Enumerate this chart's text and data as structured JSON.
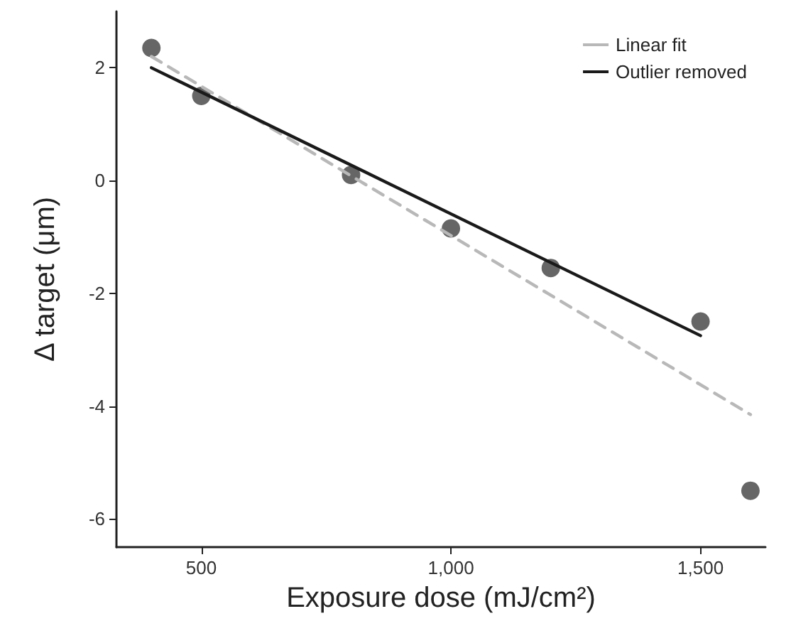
{
  "chart_data": {
    "type": "scatter",
    "xlabel": "Exposure dose (mJ/cm²)",
    "ylabel": "Δ target (μm)",
    "xlim": [
      330,
      1630
    ],
    "xticks": [
      {
        "value": 500,
        "label": "500"
      },
      {
        "value": 1000,
        "label": "1,000"
      },
      {
        "value": 1500,
        "label": "1,500"
      }
    ],
    "ylim": [
      -6.5,
      3
    ],
    "yticks": [
      -6,
      -4,
      -2,
      0,
      2
    ],
    "series": [
      {
        "color": "#404040",
        "marker": "circle",
        "x": [
          400,
          500,
          800,
          1000,
          1200,
          1500,
          1600
        ],
        "values": [
          2.35,
          1.5,
          0.1,
          -0.85,
          -1.55,
          -2.5,
          -5.5
        ]
      },
      {
        "type": "line",
        "name": "Linear fit",
        "color": "#b8b8b8",
        "line_style": "dashed",
        "x": [
          400,
          1600
        ],
        "values": [
          2.2,
          -4.15
        ]
      },
      {
        "type": "line",
        "name": "Outlier removed",
        "color": "#1a1a1a",
        "line_style": "solid",
        "x": [
          400,
          1500
        ],
        "values": [
          2.0,
          -2.75
        ]
      }
    ],
    "grid": false,
    "legend": "top right"
  }
}
